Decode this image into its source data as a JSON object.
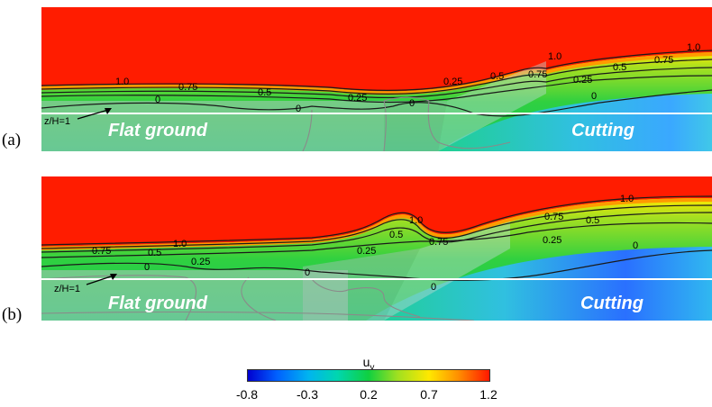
{
  "panels": [
    {
      "letter": "(a)",
      "height_marker": "z/H=1",
      "flat_label": "Flat ground",
      "cutting_label": "Cutting",
      "contour_labels": [
        "1.0",
        "0.75",
        "0.5",
        "0.25",
        "0",
        "0",
        "0.25",
        "0.5",
        "0.75",
        "1.0",
        "0.25",
        "0.5",
        "0.75",
        "1.0",
        "0"
      ]
    },
    {
      "letter": "(b)",
      "height_marker": "z/H=1",
      "flat_label": "Flat ground",
      "cutting_label": "Cutting",
      "contour_labels": [
        "0.75",
        "0.5",
        "1.0",
        "0",
        "0.25",
        "0",
        "0.25",
        "0.5",
        "1.0",
        "0.75",
        "0.75",
        "0.5",
        "0.25",
        "1.0",
        "0",
        "0"
      ]
    }
  ],
  "colorbar": {
    "title": "u",
    "title_subscript": "y",
    "ticks": [
      "-0.8",
      "-0.3",
      "0.2",
      "0.7",
      "1.2"
    ],
    "colors": [
      "#0000d0",
      "#00b4f0",
      "#10d040",
      "#ffe800",
      "#ff1800"
    ]
  }
}
